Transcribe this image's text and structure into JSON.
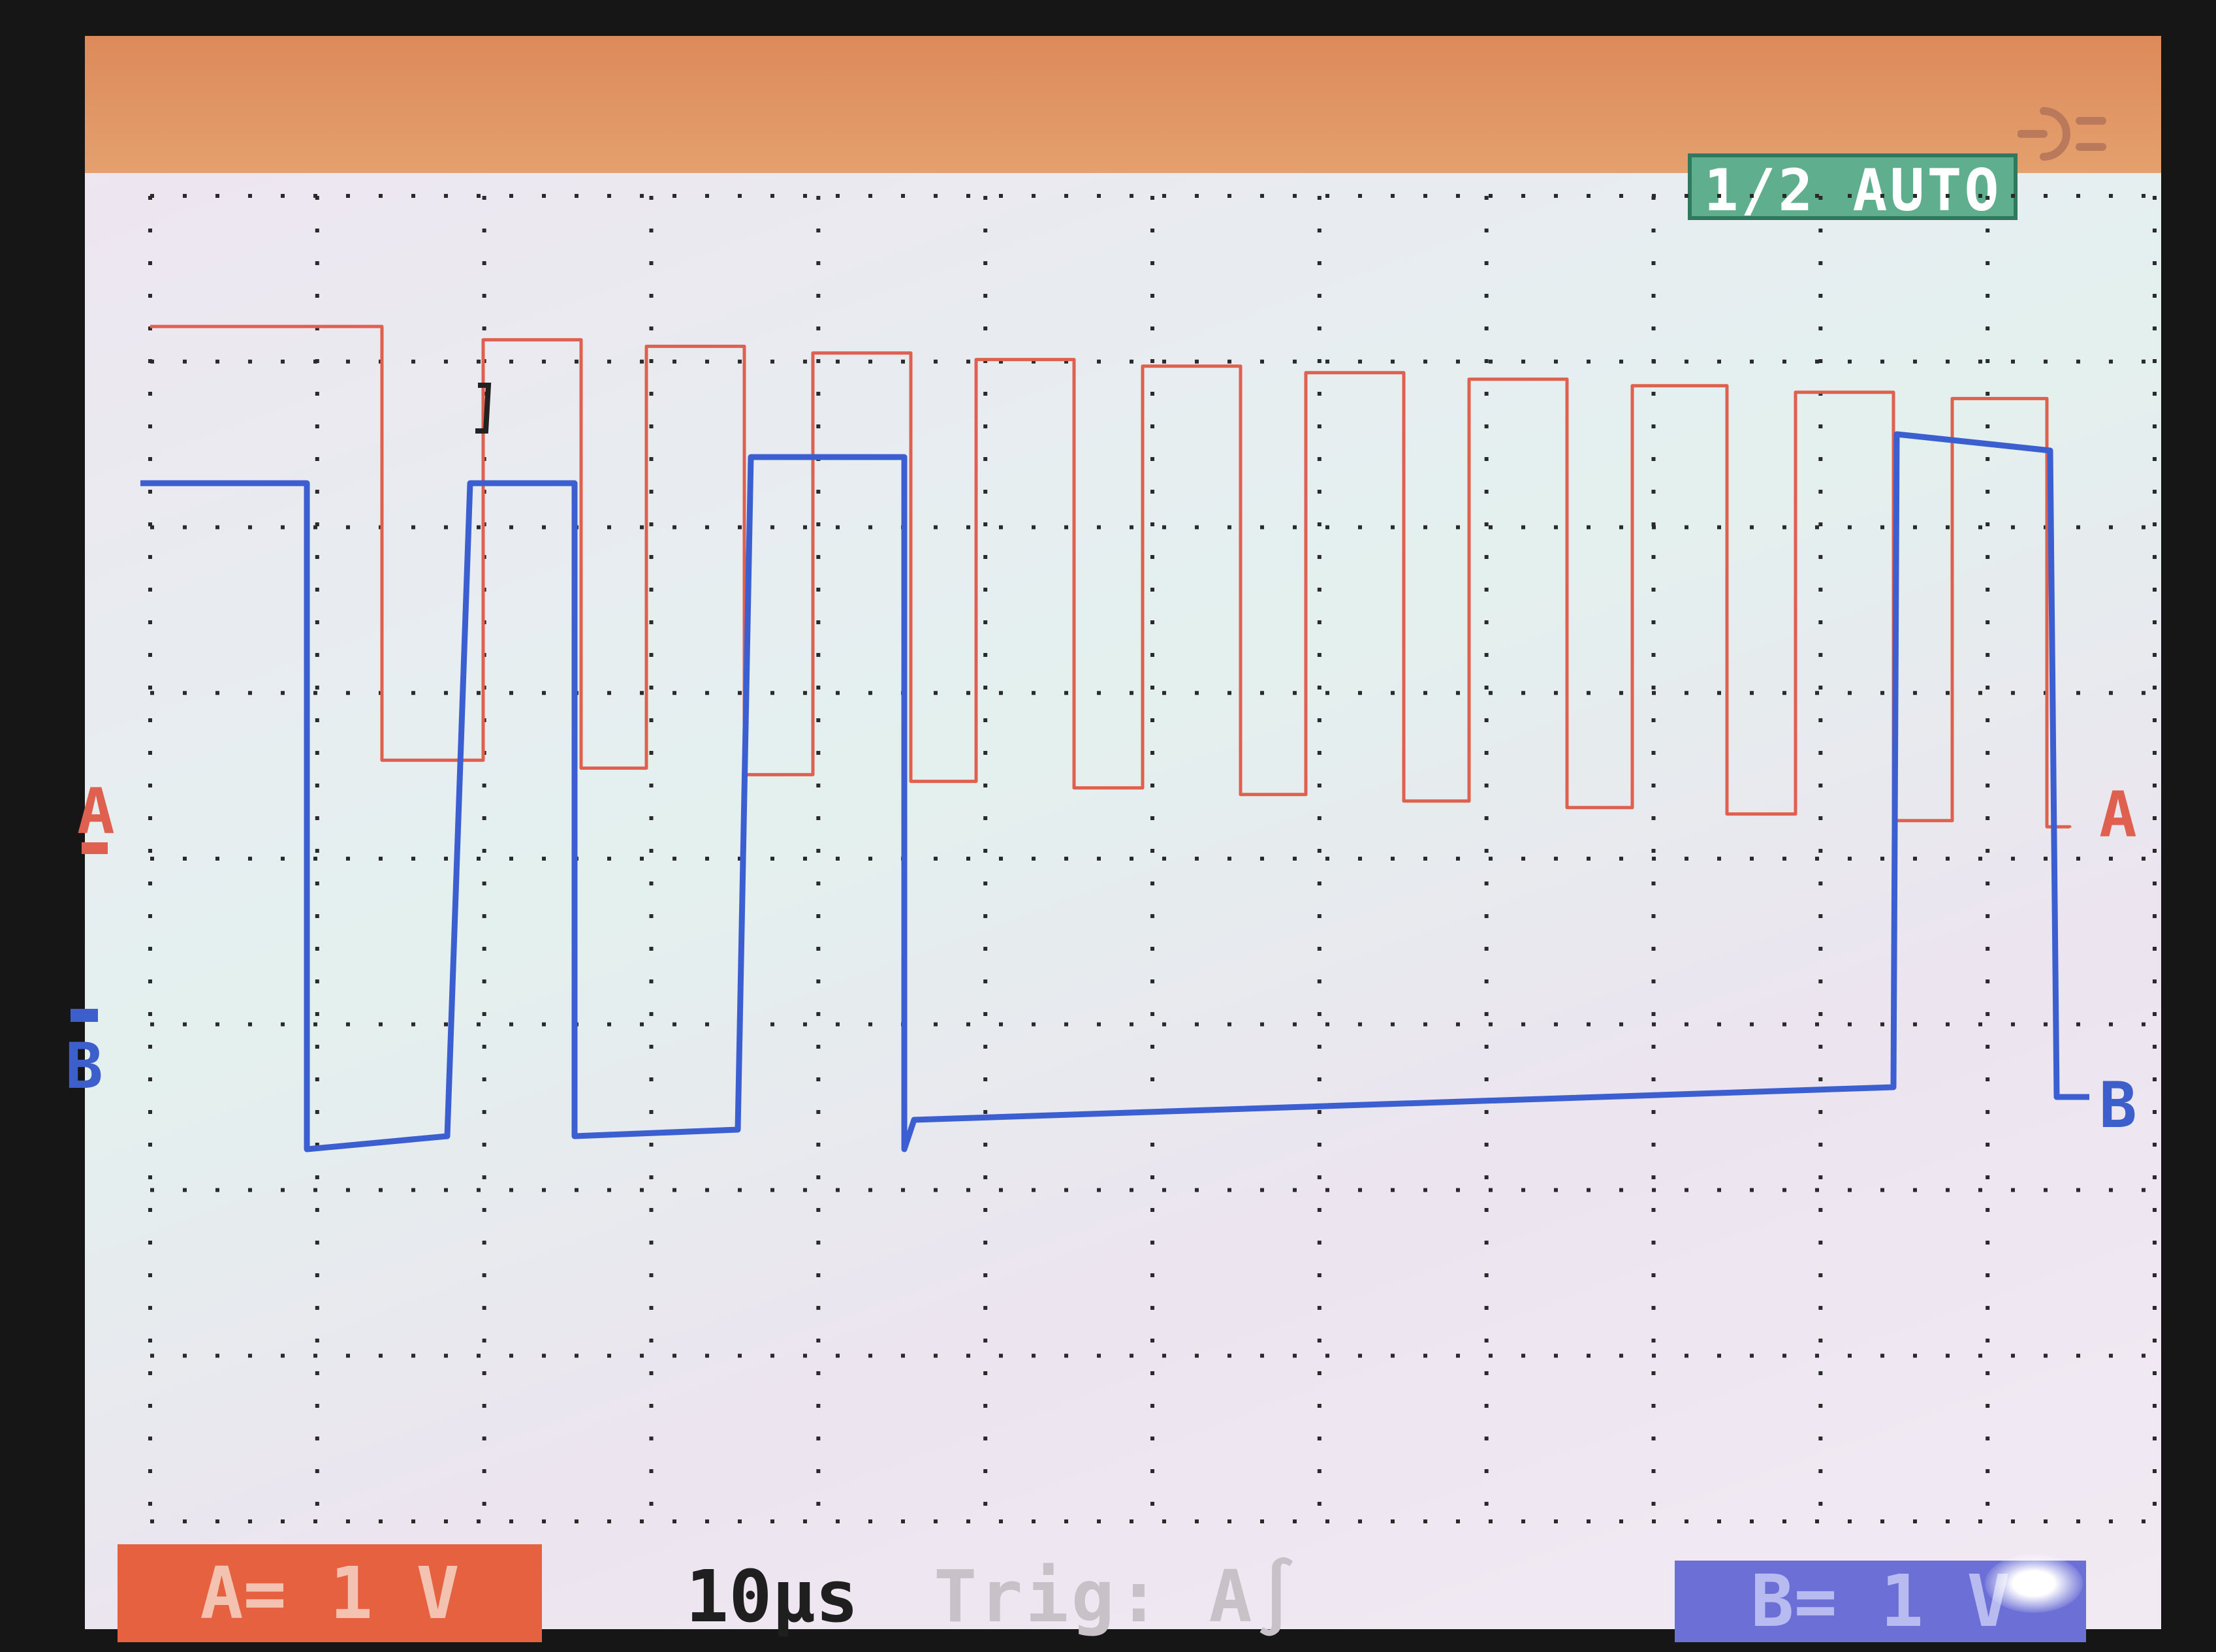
{
  "header": {
    "mode_badge": "1/2 AUTO",
    "power_icon": "plug-icon"
  },
  "channels": {
    "a": {
      "label": "A",
      "color": "#e06050",
      "scale": "A= 1 V"
    },
    "b": {
      "label": "B",
      "color": "#3d5fcc",
      "scale": "B= 1 V"
    }
  },
  "status": {
    "timebase": "10μs",
    "trigger": "Trig: A∫"
  },
  "colors": {
    "grid": "#2a2a2a",
    "top_bar": "#e4a06e",
    "badge": "#5faf8f"
  }
}
